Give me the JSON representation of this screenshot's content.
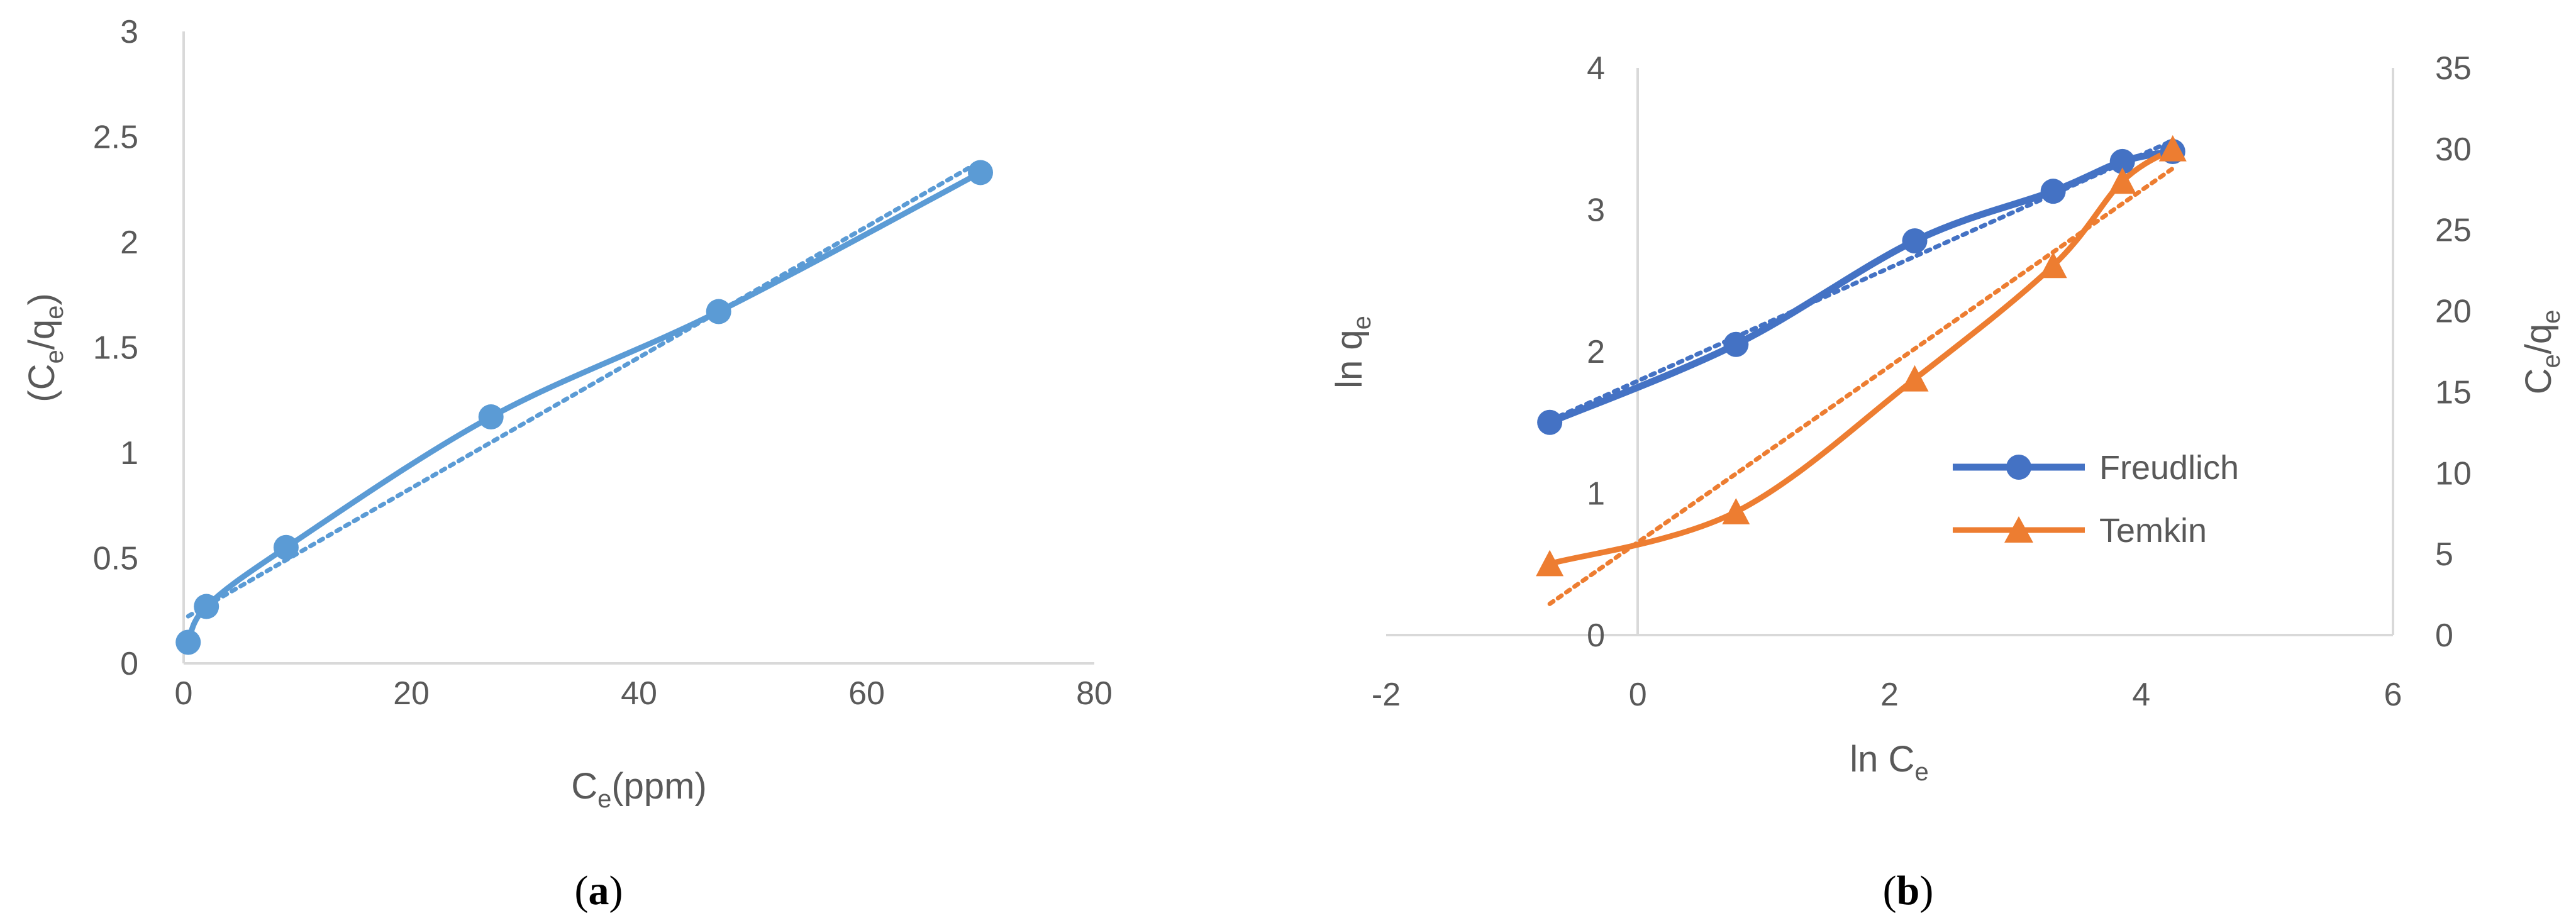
{
  "chart_data": [
    {
      "type": "scatter",
      "caption": {
        "open": "(",
        "letter": "a",
        "close": ")"
      },
      "xlabel": {
        "main": "C",
        "sub": "e",
        "rest": "(ppm)"
      },
      "ylabel": {
        "open": "(C",
        "sub1": "e",
        "mid": "/q",
        "sub2": "e",
        "close": ")"
      },
      "xlim": [
        0,
        80
      ],
      "ylim": [
        0,
        3
      ],
      "xticks": [
        0,
        20,
        40,
        60,
        80
      ],
      "yticks": [
        0,
        0.5,
        1,
        1.5,
        2,
        2.5,
        3
      ],
      "grid": false,
      "trendline": "linear dotted",
      "color": "#5B9BD5",
      "series": [
        {
          "x": [
            0.4,
            2,
            9,
            27,
            47,
            70
          ],
          "y": [
            0.1,
            0.27,
            0.55,
            1.17,
            1.67,
            2.33
          ]
        }
      ]
    },
    {
      "type": "line",
      "caption": {
        "open": "(",
        "letter": "b",
        "close": ")"
      },
      "xlabel": {
        "main": "ln C",
        "sub": "e"
      },
      "ylabel": {
        "main": "ln q",
        "sub": "e"
      },
      "y2label": {
        "main": "C",
        "sub1": "e",
        "mid": "/q",
        "sub2": "e"
      },
      "xlim": [
        -2,
        6
      ],
      "ylim": [
        0,
        4
      ],
      "y2lim": [
        0,
        35
      ],
      "xticks": [
        -2,
        0,
        2,
        4,
        6
      ],
      "yticks": [
        0,
        1,
        2,
        3,
        4
      ],
      "y2ticks": [
        0,
        5,
        10,
        15,
        20,
        25,
        30,
        35
      ],
      "grid": false,
      "legend_position": "right",
      "trendline": "linear dotted",
      "series": [
        {
          "name": "Freudlich",
          "axis": "left",
          "marker": "circle",
          "color": "#4472C4",
          "x": [
            -0.7,
            0.78,
            2.2,
            3.3,
            3.85,
            4.25
          ],
          "y": [
            1.5,
            2.05,
            2.78,
            3.13,
            3.34,
            3.41
          ]
        },
        {
          "name": "Temkin",
          "axis": "right",
          "marker": "triangle",
          "color": "#ED7D31",
          "x": [
            -0.7,
            0.78,
            2.2,
            3.3,
            3.85,
            4.25
          ],
          "y": [
            4.4,
            7.6,
            15.8,
            22.8,
            28,
            30
          ]
        }
      ]
    }
  ]
}
